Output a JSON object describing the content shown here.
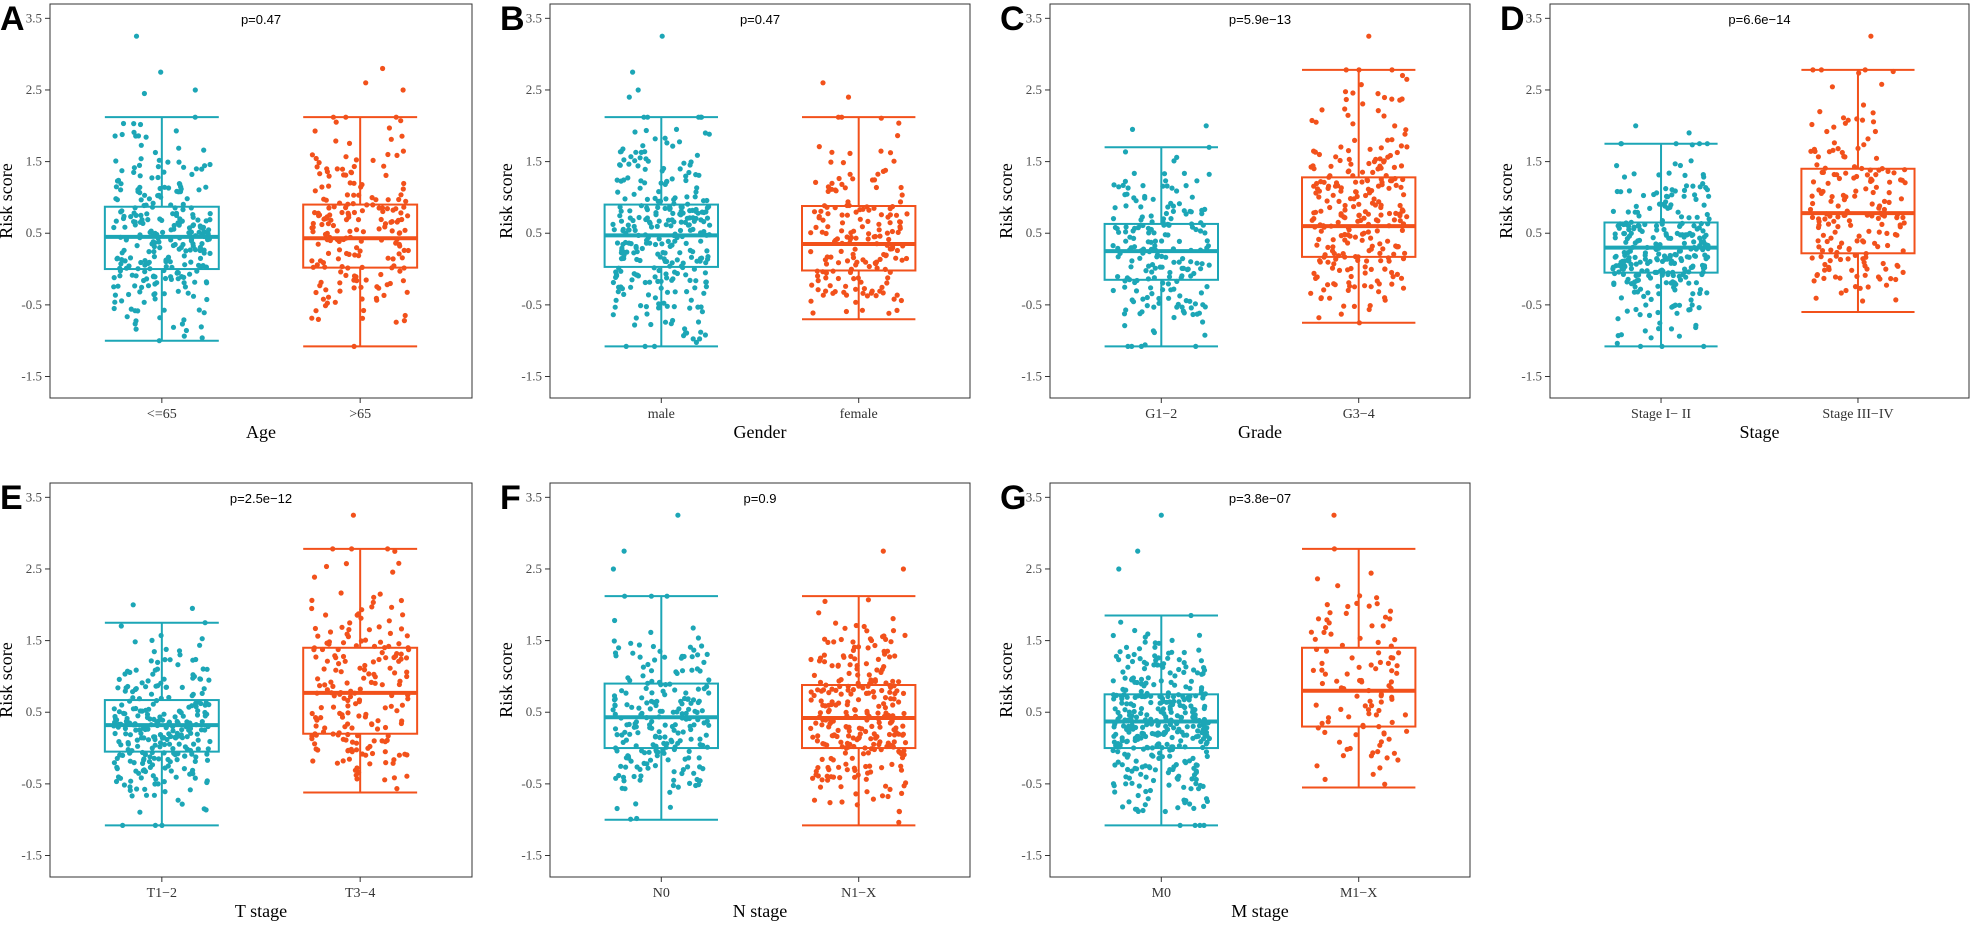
{
  "figure": {
    "palette": {
      "group1": "#1CA6B6",
      "group2": "#F2511B"
    },
    "y_ticks": [
      "3.5",
      "2.5",
      "1.5",
      "0.5",
      "-0.5",
      "-1.5"
    ]
  },
  "chart_data": [
    {
      "panel": "A",
      "type": "boxplot",
      "title": "p=0.47",
      "xlabel": "Age",
      "ylabel": "Risk score",
      "ylim": [
        -1.8,
        3.7
      ],
      "y_ticks": [
        -1.5,
        -0.5,
        0.5,
        1.5,
        2.5,
        3.5
      ],
      "categories": [
        "<=65",
        ">65"
      ],
      "groups": [
        {
          "name": "<=65",
          "color": "#1CA6B6",
          "n": 280,
          "min": -1.0,
          "q1": 0.0,
          "median": 0.45,
          "q3": 0.87,
          "max": 2.12,
          "outliers": [
            2.5,
            2.75,
            3.25,
            2.45
          ]
        },
        {
          "name": ">65",
          "color": "#F2511B",
          "n": 200,
          "min": -1.08,
          "q1": 0.02,
          "median": 0.43,
          "q3": 0.9,
          "max": 2.12,
          "outliers": [
            2.8,
            2.6,
            2.5
          ]
        }
      ]
    },
    {
      "panel": "B",
      "type": "boxplot",
      "title": "p=0.47",
      "xlabel": "Gender",
      "ylabel": "Risk score",
      "ylim": [
        -1.8,
        3.7
      ],
      "y_ticks": [
        -1.5,
        -0.5,
        0.5,
        1.5,
        2.5,
        3.5
      ],
      "categories": [
        "male",
        "female"
      ],
      "groups": [
        {
          "name": "male",
          "color": "#1CA6B6",
          "n": 300,
          "min": -1.08,
          "q1": 0.03,
          "median": 0.47,
          "q3": 0.9,
          "max": 2.12,
          "outliers": [
            2.5,
            2.75,
            3.25,
            2.4
          ]
        },
        {
          "name": "female",
          "color": "#F2511B",
          "n": 180,
          "min": -0.7,
          "q1": -0.02,
          "median": 0.35,
          "q3": 0.88,
          "max": 2.12,
          "outliers": [
            2.6,
            2.4
          ]
        }
      ]
    },
    {
      "panel": "C",
      "type": "boxplot",
      "title": "p=5.9e−13",
      "xlabel": "Grade",
      "ylabel": "Risk score",
      "ylim": [
        -1.8,
        3.7
      ],
      "y_ticks": [
        -1.5,
        -0.5,
        0.5,
        1.5,
        2.5,
        3.5
      ],
      "categories": [
        "G1−2",
        "G3−4"
      ],
      "groups": [
        {
          "name": "G1−2",
          "color": "#1CA6B6",
          "n": 200,
          "min": -1.08,
          "q1": -0.15,
          "median": 0.25,
          "q3": 0.63,
          "max": 1.7,
          "outliers": [
            1.95,
            2.0
          ]
        },
        {
          "name": "G3−4",
          "color": "#F2511B",
          "n": 260,
          "min": -0.75,
          "q1": 0.17,
          "median": 0.6,
          "q3": 1.28,
          "max": 2.78,
          "outliers": [
            3.25
          ]
        }
      ]
    },
    {
      "panel": "D",
      "type": "boxplot",
      "title": "p=6.6e−14",
      "xlabel": "Stage",
      "ylabel": "Risk score",
      "ylim": [
        -1.8,
        3.7
      ],
      "y_ticks": [
        -1.5,
        -0.5,
        0.5,
        1.5,
        2.5,
        3.5
      ],
      "categories": [
        "Stage I− II",
        "Stage III−IV"
      ],
      "groups": [
        {
          "name": "Stage I− II",
          "color": "#1CA6B6",
          "n": 300,
          "min": -1.08,
          "q1": -0.05,
          "median": 0.3,
          "q3": 0.65,
          "max": 1.75,
          "outliers": [
            2.0,
            1.9
          ]
        },
        {
          "name": "Stage III−IV",
          "color": "#F2511B",
          "n": 190,
          "min": -0.6,
          "q1": 0.22,
          "median": 0.78,
          "q3": 1.4,
          "max": 2.78,
          "outliers": [
            3.25
          ]
        }
      ]
    },
    {
      "panel": "E",
      "type": "boxplot",
      "title": "p=2.5e−12",
      "xlabel": "T stage",
      "ylabel": "Risk score",
      "ylim": [
        -1.8,
        3.7
      ],
      "y_ticks": [
        -1.5,
        -0.5,
        0.5,
        1.5,
        2.5,
        3.5
      ],
      "categories": [
        "T1−2",
        "T3−4"
      ],
      "groups": [
        {
          "name": "T1−2",
          "color": "#1CA6B6",
          "n": 280,
          "min": -1.08,
          "q1": -0.05,
          "median": 0.32,
          "q3": 0.67,
          "max": 1.75,
          "outliers": [
            2.0,
            1.95
          ]
        },
        {
          "name": "T3−4",
          "color": "#F2511B",
          "n": 200,
          "min": -0.62,
          "q1": 0.2,
          "median": 0.77,
          "q3": 1.4,
          "max": 2.78,
          "outliers": [
            3.25
          ]
        }
      ]
    },
    {
      "panel": "F",
      "type": "boxplot",
      "title": "p=0.9",
      "xlabel": "N stage",
      "ylabel": "Risk score",
      "ylim": [
        -1.8,
        3.7
      ],
      "y_ticks": [
        -1.5,
        -0.5,
        0.5,
        1.5,
        2.5,
        3.5
      ],
      "categories": [
        "N0",
        "N1−X"
      ],
      "groups": [
        {
          "name": "N0",
          "color": "#1CA6B6",
          "n": 220,
          "min": -1.0,
          "q1": 0.0,
          "median": 0.43,
          "q3": 0.9,
          "max": 2.12,
          "outliers": [
            2.5,
            2.75,
            3.25
          ]
        },
        {
          "name": "N1−X",
          "color": "#F2511B",
          "n": 280,
          "min": -1.08,
          "q1": 0.0,
          "median": 0.42,
          "q3": 0.88,
          "max": 2.12,
          "outliers": [
            2.75,
            2.5
          ]
        }
      ]
    },
    {
      "panel": "G",
      "type": "boxplot",
      "title": "p=3.8e−07",
      "xlabel": "M stage",
      "ylabel": "Risk score",
      "ylim": [
        -1.8,
        3.7
      ],
      "y_ticks": [
        -1.5,
        -0.5,
        0.5,
        1.5,
        2.5,
        3.5
      ],
      "categories": [
        "M0",
        "M1−X"
      ],
      "groups": [
        {
          "name": "M0",
          "color": "#1CA6B6",
          "n": 360,
          "min": -1.08,
          "q1": 0.0,
          "median": 0.37,
          "q3": 0.75,
          "max": 1.85,
          "outliers": [
            2.5,
            2.75,
            3.25
          ]
        },
        {
          "name": "M1−X",
          "color": "#F2511B",
          "n": 110,
          "min": -0.55,
          "q1": 0.3,
          "median": 0.8,
          "q3": 1.4,
          "max": 2.78,
          "outliers": [
            3.25
          ]
        }
      ]
    }
  ]
}
